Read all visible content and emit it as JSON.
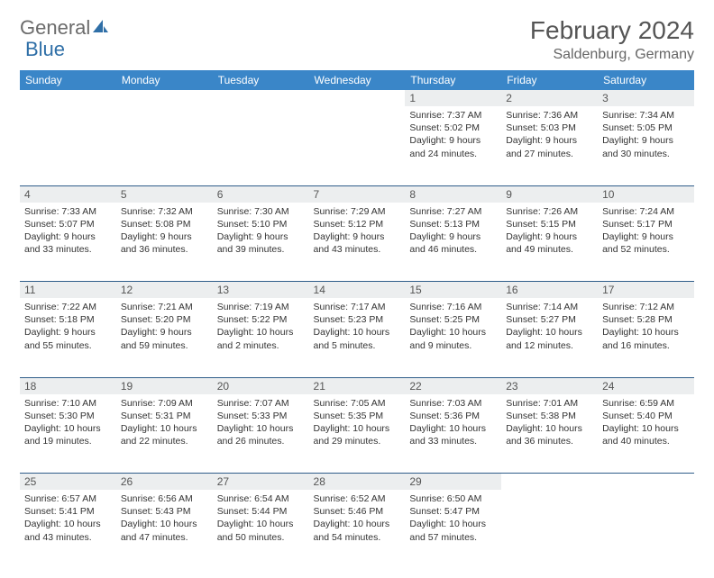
{
  "logo": {
    "text1": "General",
    "text2": "Blue"
  },
  "title": "February 2024",
  "location": "Saldenburg, Germany",
  "header_color": "#3a86c8",
  "daynum_bg": "#eceeef",
  "border_color": "#2f5d8a",
  "weekdays": [
    "Sunday",
    "Monday",
    "Tuesday",
    "Wednesday",
    "Thursday",
    "Friday",
    "Saturday"
  ],
  "weeks": [
    [
      null,
      null,
      null,
      null,
      {
        "n": "1",
        "sr": "7:37 AM",
        "ss": "5:02 PM",
        "dl": "9 hours and 24 minutes."
      },
      {
        "n": "2",
        "sr": "7:36 AM",
        "ss": "5:03 PM",
        "dl": "9 hours and 27 minutes."
      },
      {
        "n": "3",
        "sr": "7:34 AM",
        "ss": "5:05 PM",
        "dl": "9 hours and 30 minutes."
      }
    ],
    [
      {
        "n": "4",
        "sr": "7:33 AM",
        "ss": "5:07 PM",
        "dl": "9 hours and 33 minutes."
      },
      {
        "n": "5",
        "sr": "7:32 AM",
        "ss": "5:08 PM",
        "dl": "9 hours and 36 minutes."
      },
      {
        "n": "6",
        "sr": "7:30 AM",
        "ss": "5:10 PM",
        "dl": "9 hours and 39 minutes."
      },
      {
        "n": "7",
        "sr": "7:29 AM",
        "ss": "5:12 PM",
        "dl": "9 hours and 43 minutes."
      },
      {
        "n": "8",
        "sr": "7:27 AM",
        "ss": "5:13 PM",
        "dl": "9 hours and 46 minutes."
      },
      {
        "n": "9",
        "sr": "7:26 AM",
        "ss": "5:15 PM",
        "dl": "9 hours and 49 minutes."
      },
      {
        "n": "10",
        "sr": "7:24 AM",
        "ss": "5:17 PM",
        "dl": "9 hours and 52 minutes."
      }
    ],
    [
      {
        "n": "11",
        "sr": "7:22 AM",
        "ss": "5:18 PM",
        "dl": "9 hours and 55 minutes."
      },
      {
        "n": "12",
        "sr": "7:21 AM",
        "ss": "5:20 PM",
        "dl": "9 hours and 59 minutes."
      },
      {
        "n": "13",
        "sr": "7:19 AM",
        "ss": "5:22 PM",
        "dl": "10 hours and 2 minutes."
      },
      {
        "n": "14",
        "sr": "7:17 AM",
        "ss": "5:23 PM",
        "dl": "10 hours and 5 minutes."
      },
      {
        "n": "15",
        "sr": "7:16 AM",
        "ss": "5:25 PM",
        "dl": "10 hours and 9 minutes."
      },
      {
        "n": "16",
        "sr": "7:14 AM",
        "ss": "5:27 PM",
        "dl": "10 hours and 12 minutes."
      },
      {
        "n": "17",
        "sr": "7:12 AM",
        "ss": "5:28 PM",
        "dl": "10 hours and 16 minutes."
      }
    ],
    [
      {
        "n": "18",
        "sr": "7:10 AM",
        "ss": "5:30 PM",
        "dl": "10 hours and 19 minutes."
      },
      {
        "n": "19",
        "sr": "7:09 AM",
        "ss": "5:31 PM",
        "dl": "10 hours and 22 minutes."
      },
      {
        "n": "20",
        "sr": "7:07 AM",
        "ss": "5:33 PM",
        "dl": "10 hours and 26 minutes."
      },
      {
        "n": "21",
        "sr": "7:05 AM",
        "ss": "5:35 PM",
        "dl": "10 hours and 29 minutes."
      },
      {
        "n": "22",
        "sr": "7:03 AM",
        "ss": "5:36 PM",
        "dl": "10 hours and 33 minutes."
      },
      {
        "n": "23",
        "sr": "7:01 AM",
        "ss": "5:38 PM",
        "dl": "10 hours and 36 minutes."
      },
      {
        "n": "24",
        "sr": "6:59 AM",
        "ss": "5:40 PM",
        "dl": "10 hours and 40 minutes."
      }
    ],
    [
      {
        "n": "25",
        "sr": "6:57 AM",
        "ss": "5:41 PM",
        "dl": "10 hours and 43 minutes."
      },
      {
        "n": "26",
        "sr": "6:56 AM",
        "ss": "5:43 PM",
        "dl": "10 hours and 47 minutes."
      },
      {
        "n": "27",
        "sr": "6:54 AM",
        "ss": "5:44 PM",
        "dl": "10 hours and 50 minutes."
      },
      {
        "n": "28",
        "sr": "6:52 AM",
        "ss": "5:46 PM",
        "dl": "10 hours and 54 minutes."
      },
      {
        "n": "29",
        "sr": "6:50 AM",
        "ss": "5:47 PM",
        "dl": "10 hours and 57 minutes."
      },
      null,
      null
    ]
  ]
}
